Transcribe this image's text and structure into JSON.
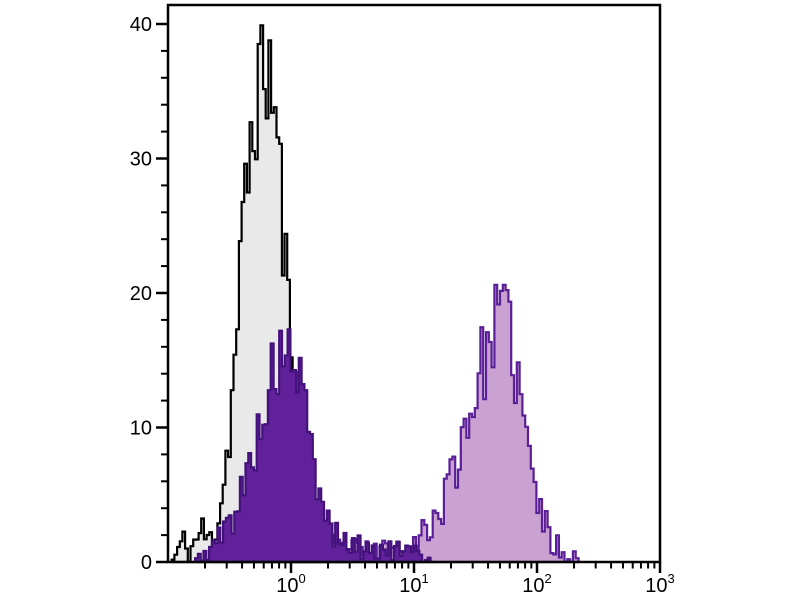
{
  "figure": {
    "kind_label": "flow cytometry overlay histogram",
    "background": "#ffffff",
    "axis_color": "#000000"
  },
  "chart_data": {
    "type": "area",
    "subtype": "flow-cytometry-overlay-histogram",
    "title": "",
    "xlabel": "",
    "ylabel": "",
    "x_scale": "log10",
    "xlim": [
      0.1,
      1000
    ],
    "ylim": [
      0,
      40
    ],
    "x_tick_base": "10",
    "x_tick_exponents": [
      0,
      1,
      2,
      3
    ],
    "yticks": [
      0,
      10,
      20,
      30,
      40
    ],
    "y_minor_step": 2,
    "grid": false,
    "legend": "none",
    "series": [
      {
        "name": "open-histogram-black",
        "description": "open black histogram with pale gray fill; peak height ~40 at x~0.6",
        "stroke": "#000000",
        "fill": "#e9e9e9",
        "stroke_width": 2.2,
        "seed": 11,
        "noise_amp": 0.9,
        "max_clamp": 39.9,
        "bins_per_decade": 46,
        "profile_log10x_y": [
          [
            -0.97,
            0
          ],
          [
            -0.93,
            0.6
          ],
          [
            -0.88,
            1.6
          ],
          [
            -0.84,
            0.7
          ],
          [
            -0.79,
            1.3
          ],
          [
            -0.73,
            2.4
          ],
          [
            -0.67,
            1.5
          ],
          [
            -0.62,
            2.2
          ],
          [
            -0.57,
            4.5
          ],
          [
            -0.52,
            8
          ],
          [
            -0.47,
            13
          ],
          [
            -0.42,
            20
          ],
          [
            -0.37,
            27
          ],
          [
            -0.32,
            32
          ],
          [
            -0.27,
            35.5
          ],
          [
            -0.22,
            37.5
          ],
          [
            -0.18,
            36.5
          ],
          [
            -0.14,
            34.5
          ],
          [
            -0.1,
            30
          ],
          [
            -0.06,
            24
          ],
          [
            -0.02,
            18.5
          ],
          [
            0.03,
            13
          ],
          [
            0.08,
            8
          ],
          [
            0.13,
            4.5
          ],
          [
            0.18,
            2.4
          ],
          [
            0.24,
            1.2
          ],
          [
            0.32,
            0.5
          ],
          [
            0.42,
            0.15
          ],
          [
            0.45,
            0
          ]
        ]
      },
      {
        "name": "filled-light-purple-histogram",
        "description": "light mauve filled histogram with dark purple outline; main peak height ~20.5 at x~55, small shoulder near x~1",
        "stroke": "#5a1e96",
        "fill": "#c9a2d2",
        "stroke_width": 2.2,
        "seed": 23,
        "noise_amp": 0.8,
        "max_clamp": 20.6,
        "bins_per_decade": 44,
        "profile_log10x_y": [
          [
            -0.42,
            0
          ],
          [
            -0.33,
            0.8
          ],
          [
            -0.24,
            2
          ],
          [
            -0.16,
            4
          ],
          [
            -0.08,
            7.5
          ],
          [
            -0.01,
            10.5
          ],
          [
            0.05,
            11.5
          ],
          [
            0.1,
            8.5
          ],
          [
            0.15,
            5
          ],
          [
            0.2,
            2.8
          ],
          [
            0.27,
            1.6
          ],
          [
            0.36,
            1.1
          ],
          [
            0.5,
            0.9
          ],
          [
            0.65,
            0.8
          ],
          [
            0.8,
            0.9
          ],
          [
            0.95,
            1.2
          ],
          [
            1.05,
            1.8
          ],
          [
            1.13,
            2.6
          ],
          [
            1.22,
            4
          ],
          [
            1.31,
            6.5
          ],
          [
            1.4,
            9.5
          ],
          [
            1.49,
            12.5
          ],
          [
            1.57,
            15
          ],
          [
            1.64,
            17
          ],
          [
            1.7,
            19
          ],
          [
            1.75,
            18.5
          ],
          [
            1.8,
            16
          ],
          [
            1.85,
            13
          ],
          [
            1.9,
            10
          ],
          [
            1.95,
            7
          ],
          [
            2.01,
            4.5
          ],
          [
            2.07,
            2.6
          ],
          [
            2.13,
            1.4
          ],
          [
            2.2,
            0.9
          ],
          [
            2.27,
            0.5
          ],
          [
            2.33,
            0.2
          ],
          [
            2.36,
            0
          ]
        ]
      },
      {
        "name": "filled-dark-purple-histogram",
        "description": "dark purple filled histogram; peak height ~17 at x~0.9 with low tail to x~15",
        "stroke": "#43117a",
        "fill": "#61219b",
        "stroke_width": 2.2,
        "seed": 5,
        "noise_amp": 0.7,
        "max_clamp": 17.3,
        "bins_per_decade": 44,
        "profile_log10x_y": [
          [
            -0.78,
            0
          ],
          [
            -0.72,
            0.5
          ],
          [
            -0.65,
            1
          ],
          [
            -0.58,
            1.8
          ],
          [
            -0.51,
            2.8
          ],
          [
            -0.44,
            4
          ],
          [
            -0.37,
            6
          ],
          [
            -0.3,
            8.5
          ],
          [
            -0.23,
            11
          ],
          [
            -0.16,
            13.5
          ],
          [
            -0.09,
            15.2
          ],
          [
            -0.03,
            16
          ],
          [
            0.02,
            15.2
          ],
          [
            0.07,
            13.5
          ],
          [
            0.12,
            11
          ],
          [
            0.17,
            8
          ],
          [
            0.22,
            5.5
          ],
          [
            0.27,
            3.8
          ],
          [
            0.33,
            2.5
          ],
          [
            0.4,
            1.6
          ],
          [
            0.5,
            1.2
          ],
          [
            0.62,
            1.0
          ],
          [
            0.75,
            0.9
          ],
          [
            0.88,
            0.8
          ],
          [
            1.0,
            0.6
          ],
          [
            1.1,
            0.4
          ],
          [
            1.18,
            0
          ]
        ]
      }
    ]
  }
}
